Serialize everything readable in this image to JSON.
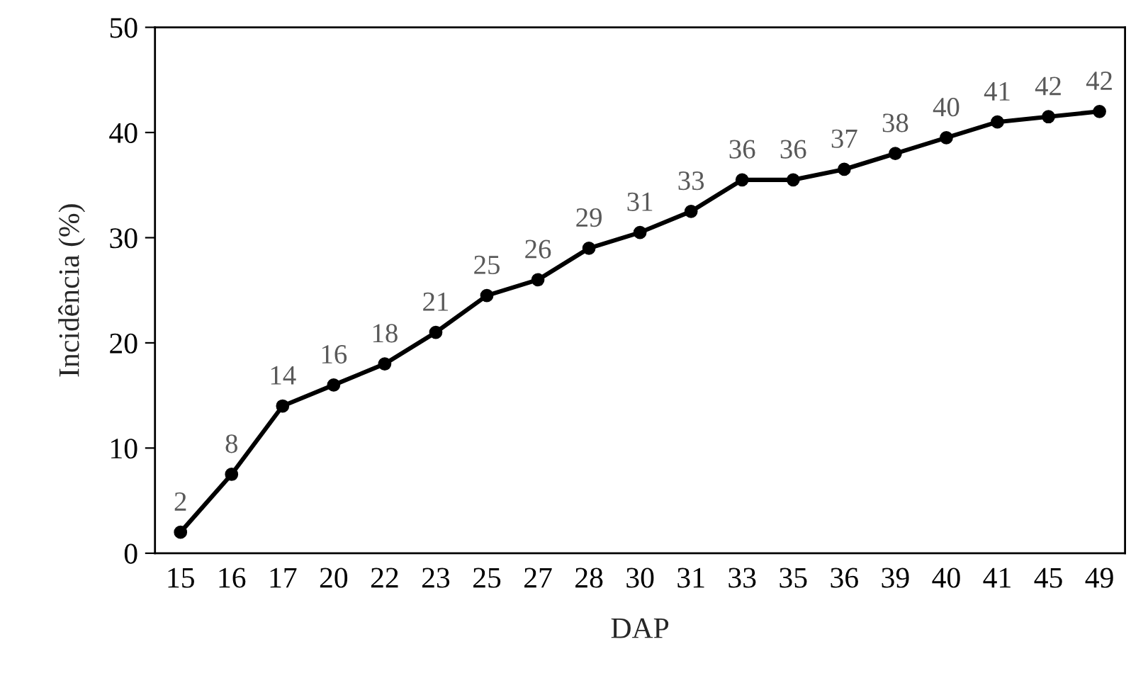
{
  "chart_data": {
    "type": "line",
    "xlabel": "DAP",
    "ylabel": "Incidência (%)",
    "categories": [
      "15",
      "16",
      "17",
      "20",
      "22",
      "23",
      "25",
      "27",
      "28",
      "30",
      "31",
      "33",
      "35",
      "36",
      "39",
      "40",
      "41",
      "45",
      "49"
    ],
    "series": [
      {
        "color": "#000000",
        "values": [
          2,
          7.5,
          14,
          16,
          18,
          21,
          24.5,
          26,
          29,
          30.5,
          32.5,
          35.5,
          35.5,
          36.5,
          38,
          39.5,
          41,
          41.5,
          42
        ],
        "value_labels": [
          "2",
          "8",
          "14",
          "16",
          "18",
          "21",
          "25",
          "26",
          "29",
          "31",
          "33",
          "36",
          "36",
          "37",
          "38",
          "40",
          "41",
          "42",
          "42"
        ]
      }
    ],
    "ylim": [
      0,
      50
    ],
    "yticks": [
      0,
      10,
      20,
      30,
      40,
      50
    ],
    "grid": false,
    "legend": false,
    "marker": "circle",
    "line_style": "solid"
  }
}
